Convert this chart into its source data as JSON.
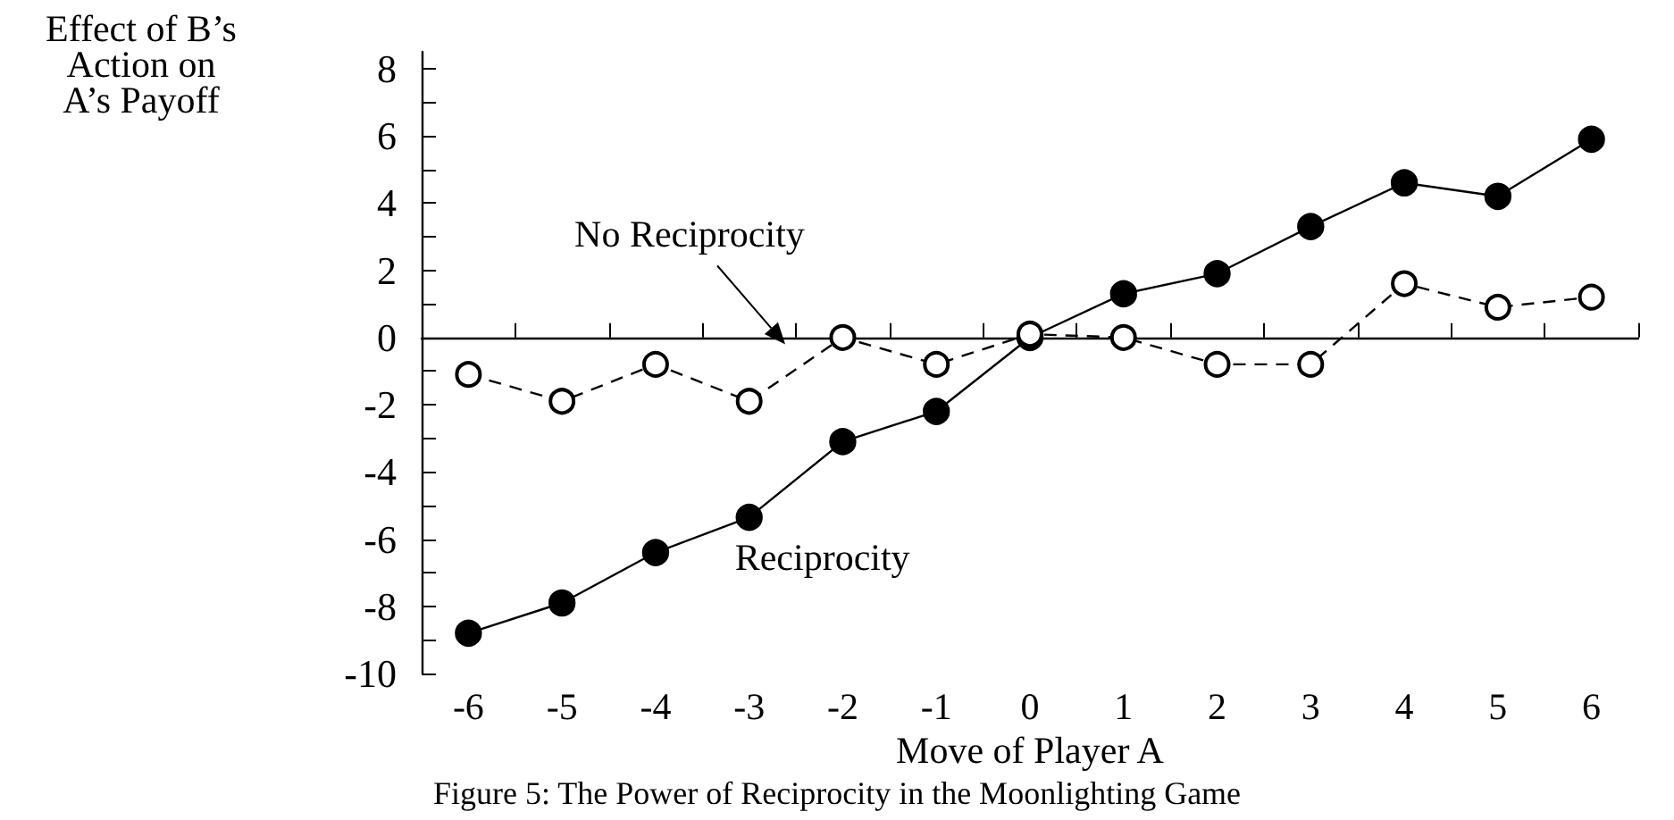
{
  "chart_data": {
    "type": "line",
    "ylabel": "Effect of B’s\nAction on\nA’s Payoff",
    "xlabel": "Move of Player A",
    "categories": [
      "-6",
      "-5",
      "-4",
      "-3",
      "-2",
      "-1",
      "0",
      "1",
      "2",
      "3",
      "4",
      "5",
      "6"
    ],
    "series": [
      {
        "name": "Reciprocity",
        "color": "#000000",
        "line_style": "solid",
        "marker": "circle",
        "values": [
          -8.8,
          -7.9,
          -6.4,
          -5.35,
          -3.1,
          -2.2,
          0,
          1.3,
          1.9,
          3.3,
          4.6,
          4.2,
          5.9
        ]
      },
      {
        "name": "No Reciprocity",
        "color": "#000000",
        "line_style": "dashed",
        "marker": "circle",
        "values": [
          -1.1,
          -1.9,
          -0.8,
          -1.9,
          0,
          -0.8,
          0.1,
          0,
          -0.8,
          -0.8,
          1.6,
          0.9,
          1.2
        ]
      }
    ],
    "ylim": [
      -10,
      8.5
    ],
    "yticks": [
      -10,
      {
        "value": -9,
        "label": null
      },
      -8,
      {
        "value": -7,
        "label": null
      },
      -6,
      {
        "value": -5,
        "label": null
      },
      -4,
      {
        "value": -3,
        "label": null
      },
      -2,
      {
        "value": -1,
        "label": null
      },
      0,
      {
        "value": 1,
        "label": null
      },
      2,
      {
        "value": 3,
        "label": null
      },
      4,
      {
        "value": 5,
        "label": null
      },
      6,
      {
        "value": 7,
        "label": null
      },
      8
    ],
    "annotations": [
      "Figure 5: The Power of Reciprocity in the Moonlighting Game"
    ],
    "legend": false
  }
}
